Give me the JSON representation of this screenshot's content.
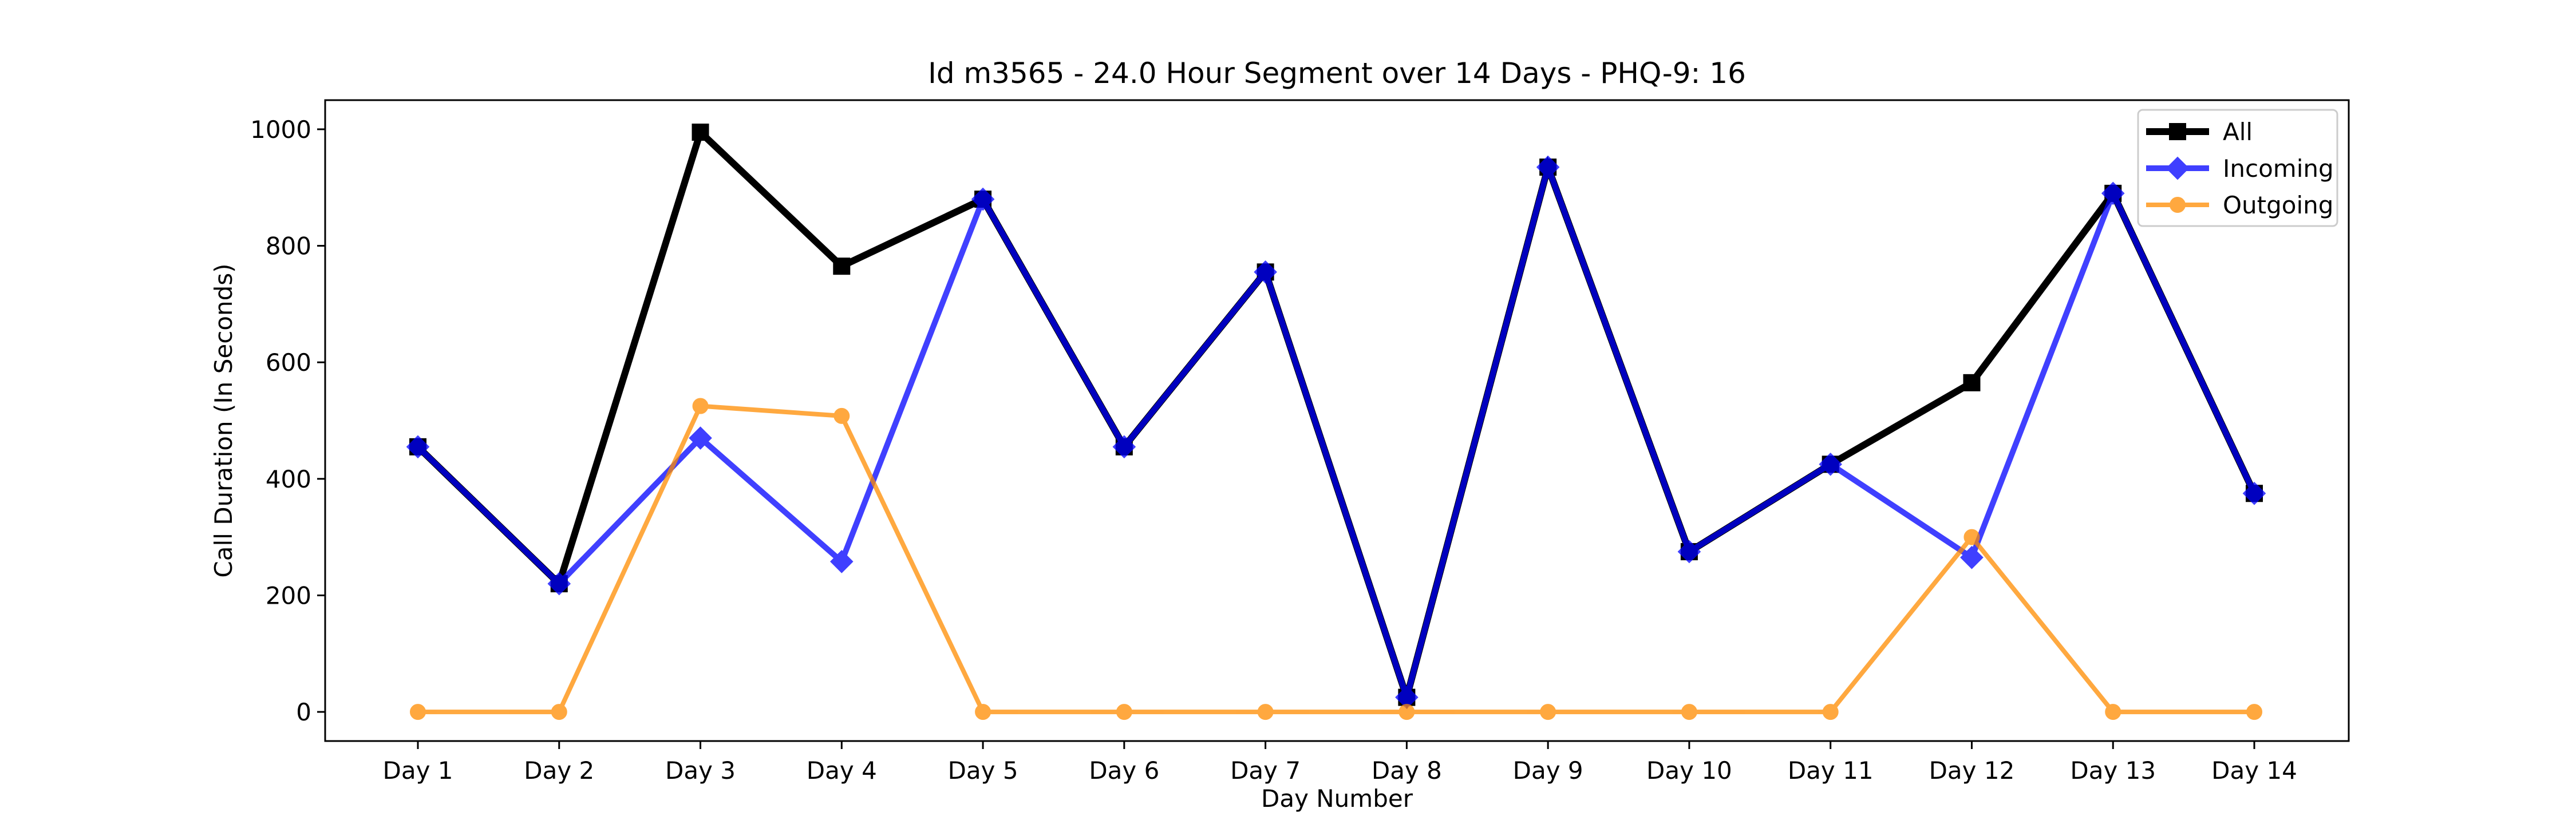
{
  "chart_data": {
    "type": "line",
    "title": "Id m3565 - 24.0 Hour Segment over 14 Days - PHQ-9: 16",
    "xlabel": "Day Number",
    "ylabel": "Call Duration (In Seconds)",
    "categories": [
      "Day 1",
      "Day 2",
      "Day 3",
      "Day 4",
      "Day 5",
      "Day 6",
      "Day 7",
      "Day 8",
      "Day 9",
      "Day 10",
      "Day 11",
      "Day 12",
      "Day 13",
      "Day 14"
    ],
    "ylim": [
      -50,
      1050
    ],
    "yticks": [
      0,
      200,
      400,
      600,
      800,
      1000
    ],
    "grid": false,
    "legend": "top-right",
    "series": [
      {
        "name": "All",
        "color": "#000000",
        "marker": "square",
        "values": [
          455,
          220,
          995,
          765,
          880,
          455,
          755,
          25,
          935,
          275,
          425,
          565,
          890,
          375
        ]
      },
      {
        "name": "Incoming",
        "color": "#0000ff",
        "marker": "diamond",
        "values": [
          455,
          220,
          470,
          258,
          880,
          455,
          755,
          25,
          935,
          275,
          425,
          265,
          890,
          375
        ]
      },
      {
        "name": "Outgoing",
        "color": "#ff8c00",
        "marker": "circle",
        "values": [
          0,
          0,
          525,
          508,
          0,
          0,
          0,
          0,
          0,
          0,
          0,
          300,
          0,
          0
        ]
      }
    ]
  }
}
